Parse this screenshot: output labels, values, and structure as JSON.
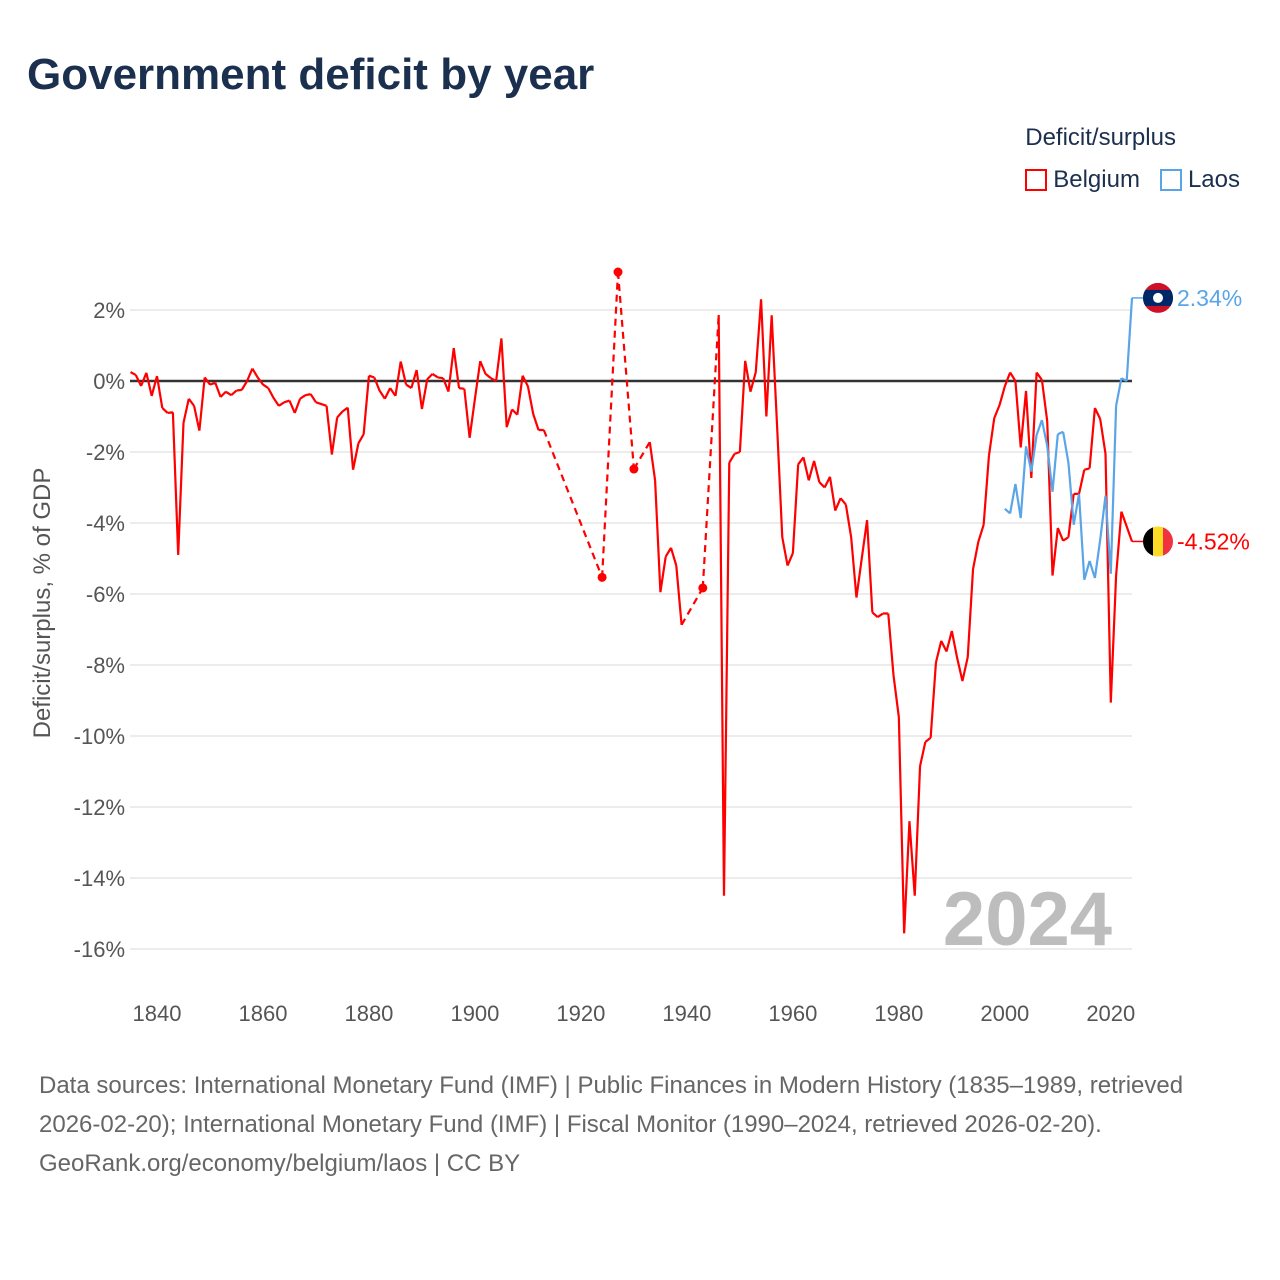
{
  "title": "Government deficit by year",
  "legend": {
    "title": "Deficit/surplus",
    "items": [
      {
        "label": "Belgium",
        "color": "#ff0000"
      },
      {
        "label": "Laos",
        "color": "#5aa5e8"
      }
    ]
  },
  "footer": {
    "sources": "Data sources: International Monetary Fund (IMF) | Public Finances in Modern History (1835–1989, retrieved 2026-02-20); International Monetary Fund (IMF) | Fiscal Monitor (1990–2024, retrieved 2026-02-20).",
    "credit": "GeoRank.org/economy/belgium/laos | CC BY"
  },
  "chart_data": {
    "type": "line",
    "title": "Government deficit by year",
    "xlabel": "",
    "ylabel": "Deficit/surplus, % of GDP",
    "xlim": [
      1835,
      2024
    ],
    "ylim": [
      -17,
      3.3
    ],
    "xticks": [
      "1840",
      "1860",
      "1880",
      "1900",
      "1920",
      "1940",
      "1960",
      "1980",
      "2000",
      "2020"
    ],
    "yticks": [
      "2%",
      "0%",
      "-2%",
      "-4%",
      "-6%",
      "-8%",
      "-10%",
      "-12%",
      "-14%",
      "-16%"
    ],
    "ytick_values": [
      2,
      0,
      -2,
      -4,
      -6,
      -8,
      -10,
      -12,
      -14,
      -16
    ],
    "watermark_year": "2024",
    "series": [
      {
        "name": "Belgium",
        "color": "#ff0000",
        "end_label": "-4.52%",
        "start_year": 1835,
        "values": [
          0.25,
          0.17,
          -0.14,
          0.23,
          -0.42,
          0.14,
          -0.76,
          -0.9,
          -0.88,
          -4.9,
          -1.18,
          -0.5,
          -0.7,
          -1.4,
          0.1,
          -0.1,
          -0.05,
          -0.45,
          -0.3,
          -0.4,
          -0.27,
          -0.25,
          0.0,
          0.35,
          0.1,
          -0.1,
          -0.2,
          -0.48,
          -0.7,
          -0.6,
          -0.55,
          -0.9,
          -0.5,
          -0.4,
          -0.37,
          -0.6,
          -0.65,
          -0.7,
          -2.07,
          -1.03,
          -0.86,
          -0.75,
          -2.5,
          -1.76,
          -1.5,
          0.15,
          0.1,
          -0.27,
          -0.5,
          -0.2,
          -0.42,
          0.55,
          -0.1,
          -0.2,
          0.31,
          -0.79,
          0.05,
          0.2,
          0.1,
          0.08,
          -0.3,
          0.93,
          -0.2,
          -0.22,
          -1.6,
          -0.5,
          0.56,
          0.2,
          0.08,
          0.0,
          1.2,
          -1.3,
          -0.8,
          -0.95,
          0.15,
          -0.15,
          -0.93,
          -1.38,
          -1.38,
          null,
          null,
          null,
          null,
          null,
          null,
          null,
          null,
          null,
          null,
          -5.53,
          null,
          null,
          3.07,
          null,
          null,
          -2.48,
          null,
          null,
          -1.72,
          -2.8,
          -5.95,
          -4.95,
          -4.7,
          -5.2,
          -6.87,
          null,
          null,
          null,
          -5.83,
          null,
          null,
          1.86,
          -14.5,
          -2.3,
          -2.05,
          -2.0,
          0.57,
          -0.3,
          0.25,
          2.3,
          -1.0,
          1.85,
          -1.2,
          -4.4,
          -5.2,
          -4.85,
          -2.35,
          -2.15,
          -2.8,
          -2.25,
          -2.85,
          -3.0,
          -2.7,
          -3.65,
          -3.3,
          -3.48,
          -4.4,
          -6.1,
          -5.0,
          -3.92,
          -6.52,
          -6.65,
          -6.55,
          -6.55,
          -8.3,
          -9.47,
          -15.56,
          -12.4,
          -14.5,
          -10.85,
          -10.17,
          -10.05,
          -7.93,
          -7.32,
          -7.62,
          -7.04,
          -7.8,
          -8.45,
          -7.78,
          -5.3,
          -4.53,
          -4.05,
          -2.11,
          -1.05,
          -0.68,
          -0.15,
          0.24,
          0.0,
          -1.87,
          -0.28,
          -2.73,
          0.24,
          0.03,
          -1.13,
          -5.48,
          -4.14,
          -4.5,
          -4.4,
          -3.18,
          -3.18,
          -2.5,
          -2.46,
          -0.76,
          -1.07,
          -2.05,
          -9.06,
          -5.48,
          -3.68,
          -4.1,
          -4.52
        ]
      },
      {
        "name": "Laos",
        "color": "#5aa5e8",
        "end_label": "2.34%",
        "start_year": 2000,
        "values": [
          -3.6,
          -3.73,
          -2.9,
          -3.86,
          -1.84,
          -2.55,
          -1.52,
          -1.1,
          -1.83,
          -3.12,
          -1.5,
          -1.43,
          -2.3,
          -4.05,
          -3.18,
          -5.6,
          -5.07,
          -5.55,
          -4.47,
          -3.23,
          -5.43,
          -0.7,
          0.08,
          0.0,
          2.34
        ]
      }
    ]
  }
}
